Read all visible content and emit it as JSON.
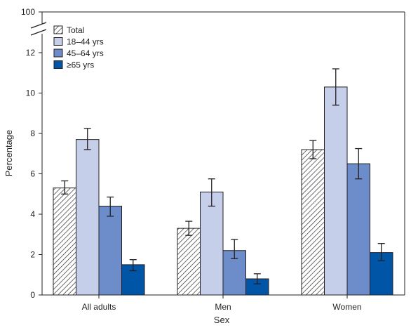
{
  "chart_data": {
    "type": "bar",
    "title": "",
    "xlabel": "Sex",
    "ylabel": "Percentage",
    "categories": [
      "All adults",
      "Men",
      "Women"
    ],
    "yticks": [
      0,
      2,
      4,
      6,
      8,
      10,
      12
    ],
    "ybreak_label": "100",
    "ylim": [
      0,
      13
    ],
    "axis_break": true,
    "legend_position": "top-left",
    "series": [
      {
        "name": "Total",
        "values": [
          5.3,
          3.3,
          7.2
        ],
        "err_low": [
          5.0,
          2.95,
          6.75
        ],
        "err_high": [
          5.65,
          3.65,
          7.65
        ],
        "color": "#ffffff",
        "pattern": "hatch"
      },
      {
        "name": "18–44 yrs",
        "values": [
          7.7,
          5.1,
          10.3
        ],
        "err_low": [
          7.2,
          4.4,
          9.4
        ],
        "err_high": [
          8.25,
          5.75,
          11.2
        ],
        "color": "#c6cfea"
      },
      {
        "name": "45–64 yrs",
        "values": [
          4.4,
          2.2,
          6.5
        ],
        "err_low": [
          3.9,
          1.8,
          5.75
        ],
        "err_high": [
          4.85,
          2.75,
          7.25
        ],
        "color": "#6d8cca"
      },
      {
        "name": "≥65 yrs",
        "values": [
          1.5,
          0.8,
          2.1
        ],
        "err_low": [
          1.2,
          0.55,
          1.7
        ],
        "err_high": [
          1.75,
          1.05,
          2.55
        ],
        "color": "#0055a6"
      }
    ]
  }
}
